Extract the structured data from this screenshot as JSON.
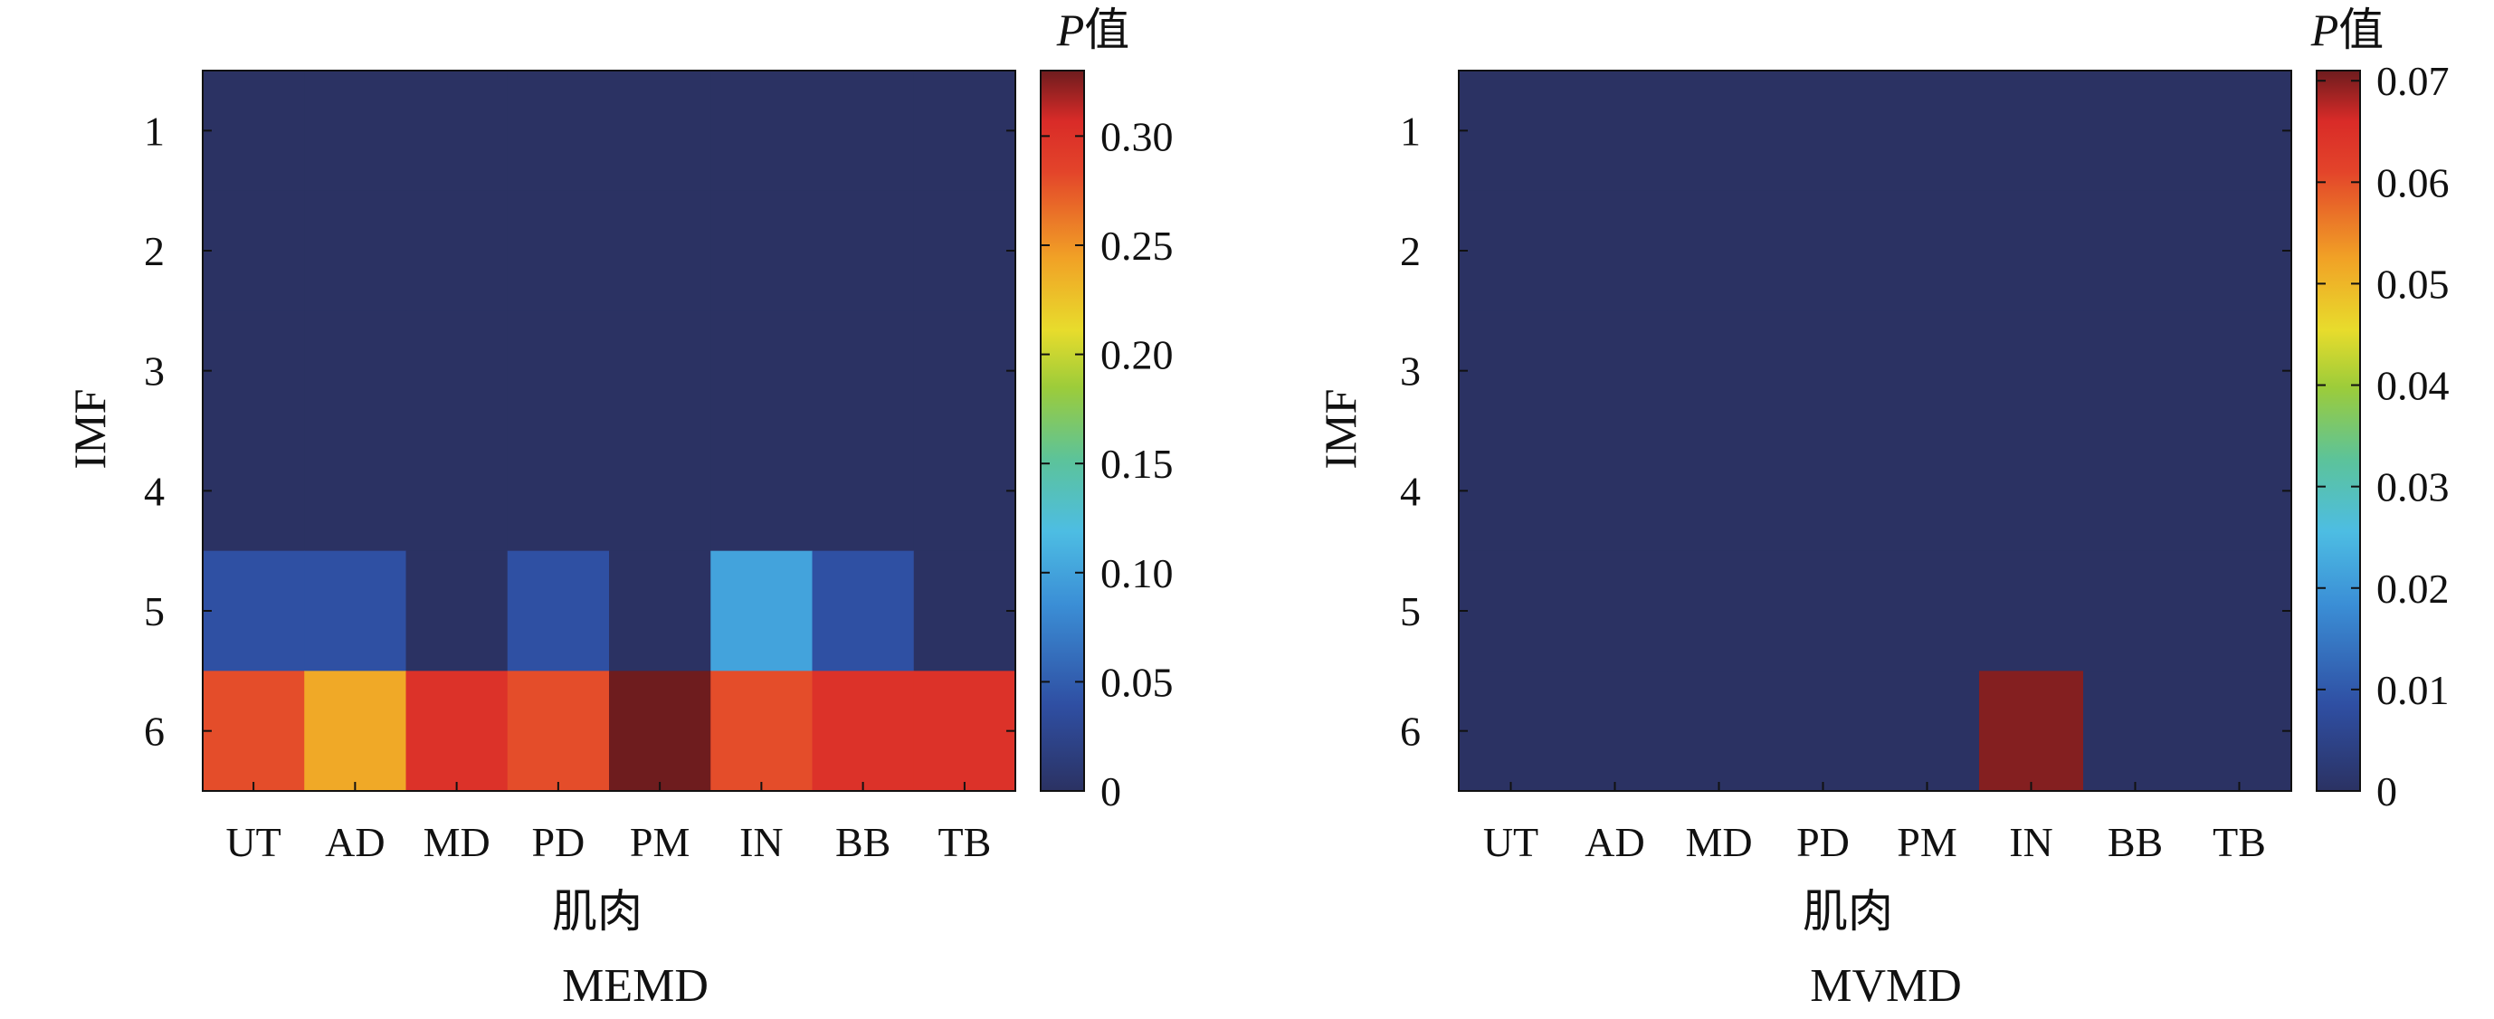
{
  "chart_data": [
    {
      "type": "heatmap",
      "caption": "MEMD",
      "xlabel": "肌肉",
      "ylabel": "IMF",
      "x_categories": [
        "UT",
        "AD",
        "MD",
        "PD",
        "PM",
        "IN",
        "BB",
        "TB"
      ],
      "y_categories": [
        "1",
        "2",
        "3",
        "4",
        "5",
        "6"
      ],
      "values": [
        [
          0,
          0,
          0,
          0,
          0,
          0,
          0,
          0
        ],
        [
          0,
          0,
          0,
          0,
          0,
          0,
          0,
          0
        ],
        [
          0,
          0,
          0,
          0,
          0,
          0,
          0,
          0
        ],
        [
          0,
          0,
          0,
          0,
          0,
          0,
          0,
          0
        ],
        [
          0.04,
          0.04,
          0,
          0.04,
          0,
          0.1,
          0.04,
          0
        ],
        [
          0.28,
          0.24,
          0.3,
          0.28,
          0.33,
          0.28,
          0.3,
          0.3
        ]
      ],
      "colorbar": {
        "title_italic": "P",
        "title_rest": "值",
        "range": [
          0,
          0.33
        ],
        "ticks": [
          0,
          0.05,
          0.1,
          0.15,
          0.2,
          0.25,
          0.3
        ],
        "tick_labels": [
          "0",
          "0.05",
          "0.10",
          "0.15",
          "0.20",
          "0.25",
          "0.30"
        ]
      }
    },
    {
      "type": "heatmap",
      "caption": "MVMD",
      "xlabel": "肌肉",
      "ylabel": "IMF",
      "x_categories": [
        "UT",
        "AD",
        "MD",
        "PD",
        "PM",
        "IN",
        "BB",
        "TB"
      ],
      "y_categories": [
        "1",
        "2",
        "3",
        "4",
        "5",
        "6"
      ],
      "values": [
        [
          0,
          0,
          0,
          0,
          0,
          0,
          0,
          0
        ],
        [
          0,
          0,
          0,
          0,
          0,
          0,
          0,
          0
        ],
        [
          0,
          0,
          0,
          0,
          0,
          0,
          0,
          0
        ],
        [
          0,
          0,
          0,
          0,
          0,
          0,
          0,
          0
        ],
        [
          0,
          0,
          0,
          0,
          0,
          0,
          0,
          0
        ],
        [
          0,
          0,
          0,
          0,
          0,
          0.07,
          0,
          0
        ]
      ],
      "colorbar": {
        "title_italic": "P",
        "title_rest": "值",
        "range": [
          0,
          0.071
        ],
        "ticks": [
          0,
          0.01,
          0.02,
          0.03,
          0.04,
          0.05,
          0.06,
          0.07
        ],
        "tick_labels": [
          "0",
          "0.01",
          "0.02",
          "0.03",
          "0.04",
          "0.05",
          "0.06",
          "0.07"
        ]
      }
    }
  ]
}
